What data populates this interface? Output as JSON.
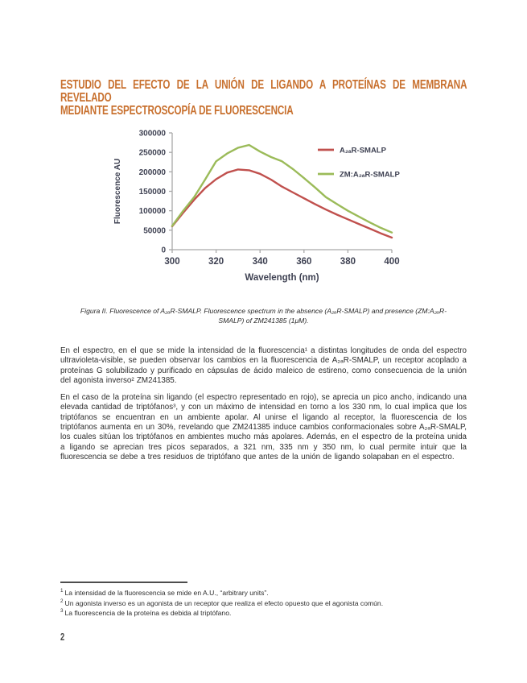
{
  "page": {
    "number": "2"
  },
  "heading": {
    "line1": "ESTUDIO DEL EFECTO DE LA UNIÓN DE LIGANDO A PROTEÍNAS DE MEMBRANA REVELADO",
    "line2": "MEDIANTE ESPECTROSCOPÍA DE FLUORESCENCIA",
    "color": "#C8702E"
  },
  "figure": {
    "caption": "Figura II. Fluorescence of A₂ₐR-SMALP. Fluorescence spectrum in the absence (A₂ₐR-SMALP) and presence (ZM:A₂ₐR-SMALP) of ZM241385 (1μM)."
  },
  "chart_data": {
    "type": "line",
    "title": "",
    "xlabel": "Wavelength (nm)",
    "ylabel": "Fluorescence AU",
    "xlim": [
      300,
      400
    ],
    "ylim": [
      0,
      300000
    ],
    "xticks": [
      300,
      320,
      340,
      360,
      380,
      400
    ],
    "yticks": [
      0,
      50000,
      100000,
      150000,
      200000,
      250000,
      300000
    ],
    "grid": false,
    "legend_position": "upper-right",
    "axis_color": "#a9a9a9",
    "text_color": "#3e4152",
    "x": [
      300,
      305,
      310,
      315,
      320,
      325,
      330,
      335,
      340,
      345,
      350,
      355,
      360,
      365,
      370,
      375,
      380,
      385,
      390,
      395,
      400
    ],
    "series": [
      {
        "name": "A₂ₐR-SMALP",
        "color": "#C0504D",
        "values": [
          60000,
          95000,
          128000,
          158000,
          181000,
          198000,
          206000,
          204000,
          195000,
          180000,
          162000,
          147000,
          132000,
          117000,
          103000,
          90000,
          78000,
          66000,
          54000,
          42000,
          31000
        ]
      },
      {
        "name": "ZM:A₂ₐR-SMALP",
        "color": "#9BBB59",
        "values": [
          61000,
          100000,
          135000,
          180000,
          227000,
          247000,
          262000,
          269000,
          252000,
          238000,
          227000,
          207000,
          184000,
          160000,
          135000,
          117000,
          100000,
          85000,
          70000,
          56000,
          44000
        ]
      }
    ]
  },
  "paragraphs": [
    "En el espectro, en el que se mide la intensidad de la fluorescencia¹ a distintas longitudes de onda del espectro ultravioleta-visible, se pueden observar los cambios en la fluorescencia de A₂ₐR-SMALP, un receptor acoplado a proteínas G solubilizado y purificado en cápsulas de ácido maleico de estireno, como consecuencia de la unión del agonista inverso² ZM241385.",
    "En el caso de la proteína sin ligando (el espectro representado en rojo), se aprecia un pico ancho, indicando una elevada cantidad de triptófanos³, y con un máximo de intensidad en torno a los 330 nm, lo cual implica que los triptófanos se encuentran en un ambiente apolar. Al unirse el ligando al receptor, la fluorescencia de los triptófanos aumenta en un 30%, revelando que ZM241385 induce cambios conformacionales sobre A₂ₐR-SMALP, los cuales sitúan los triptófanos en ambientes mucho más apolares. Además, en el espectro de la proteína unida a ligando se aprecian tres picos separados, a 321 nm, 335 nm y 350 nm, lo cual permite intuir que la fluorescencia se debe a tres residuos de triptófano que antes de la unión de ligando solapaban en el espectro."
  ],
  "footnotes": [
    {
      "marker": "1",
      "text": "La intensidad de la fluorescencia se mide en A.U., “arbitrary units”."
    },
    {
      "marker": "2",
      "text": "Un agonista inverso es un agonista de un receptor que realiza el efecto opuesto que el agonista común."
    },
    {
      "marker": "3",
      "text": "La fluorescencia de la proteína es debida al triptófano."
    }
  ]
}
